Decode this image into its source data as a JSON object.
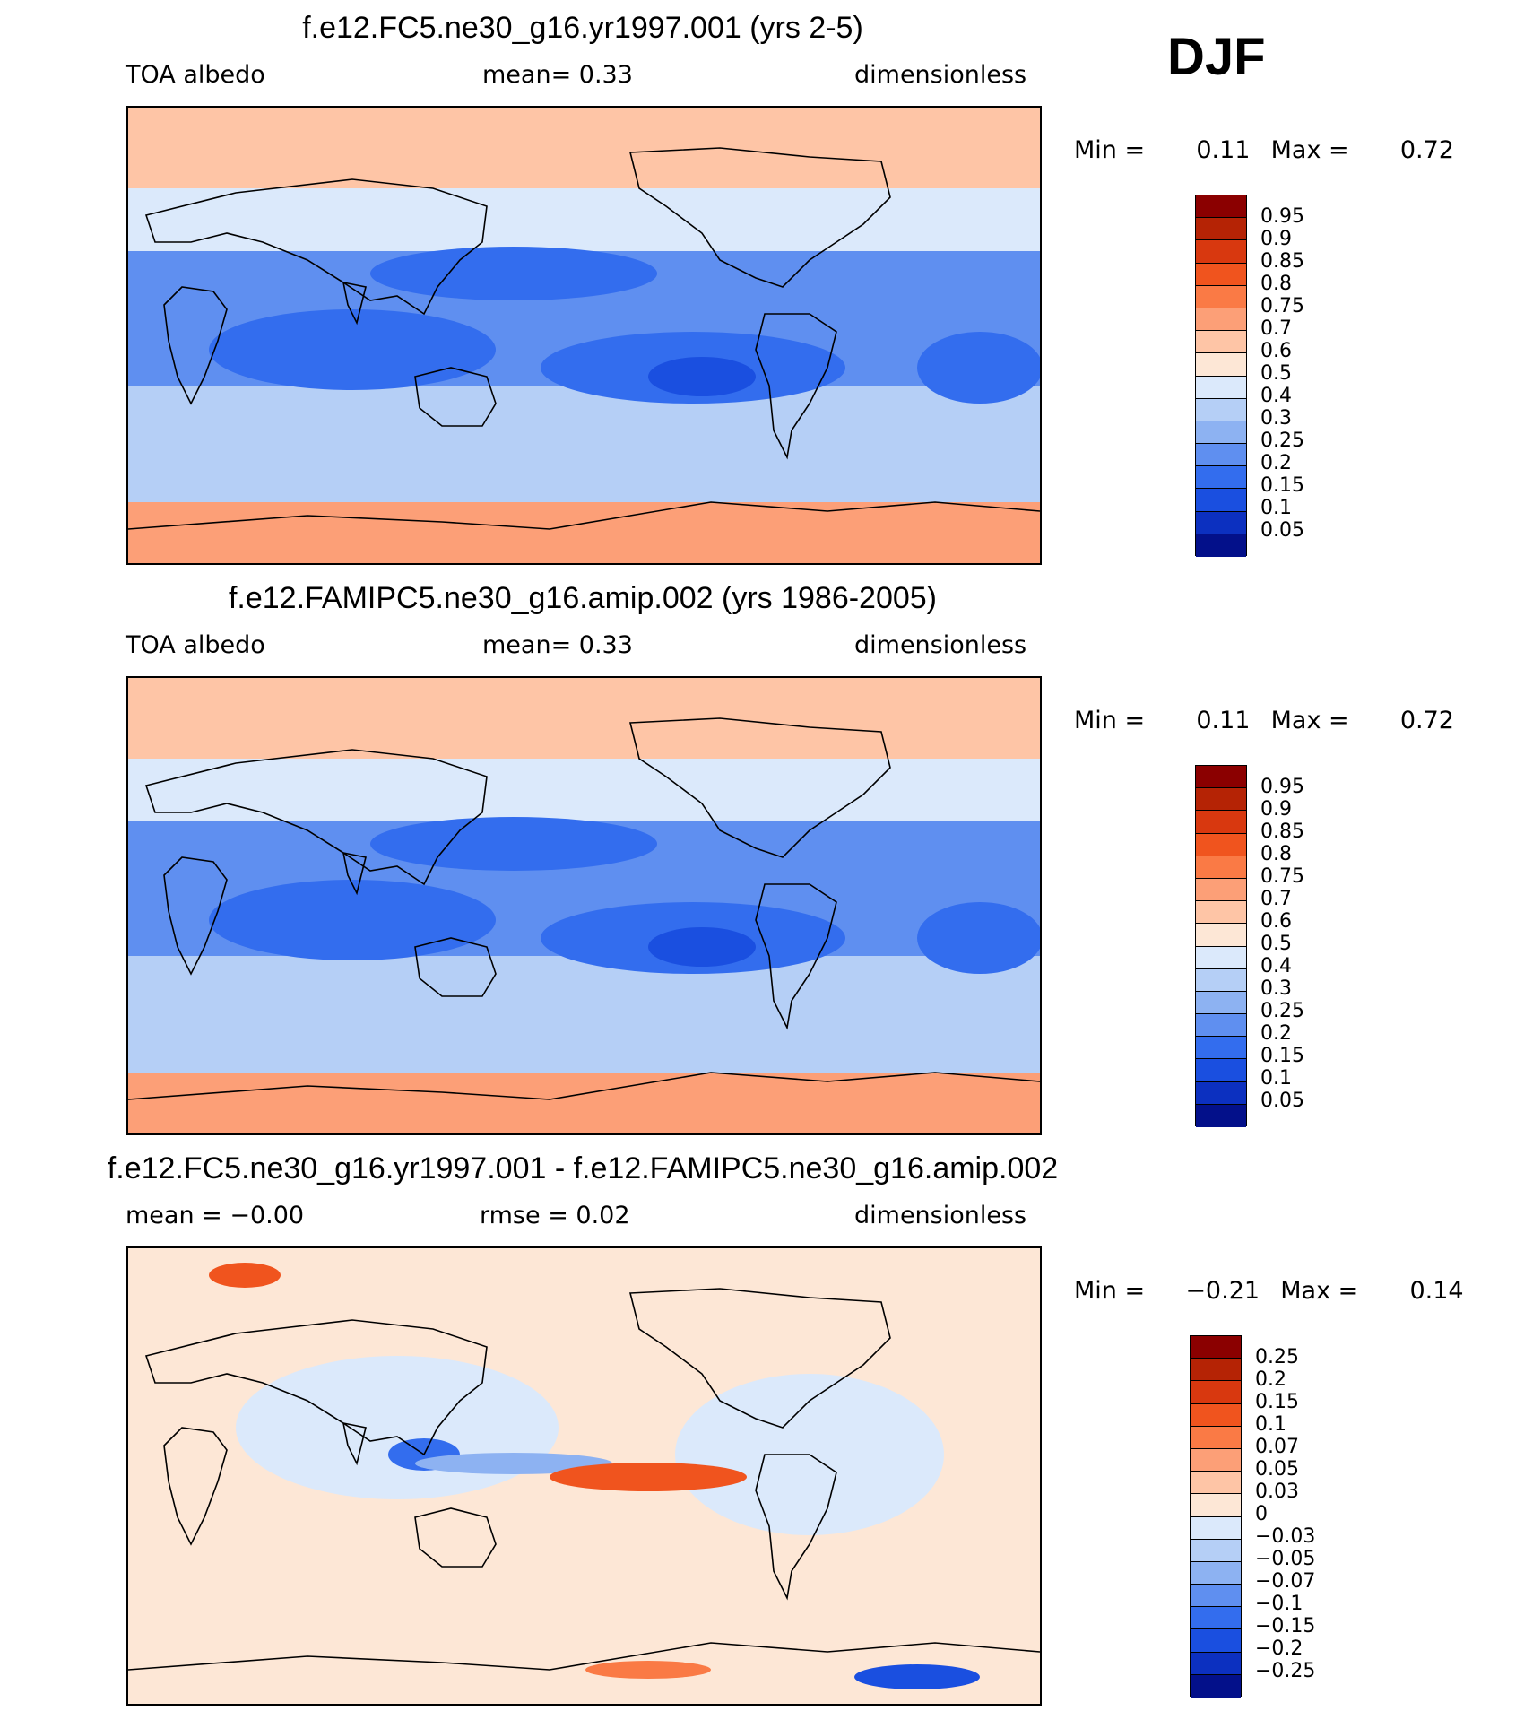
{
  "season": "DJF",
  "panels": [
    {
      "title": "f.e12.FC5.ne30_g16.yr1997.001 (yrs 2-5)",
      "left": "TOA  albedo",
      "center": "mean=     0.33",
      "right": "dimensionless",
      "min_label": "Min  =",
      "min_value": "0.11",
      "max_label": "Max  =",
      "max_value": "0.72",
      "variant": "model",
      "colorbar": {
        "labels": [
          "0.95",
          "0.9",
          "0.85",
          "0.8",
          "0.75",
          "0.7",
          "0.6",
          "0.5",
          "0.4",
          "0.3",
          "0.25",
          "0.2",
          "0.15",
          "0.1",
          "0.05"
        ],
        "colors": [
          "#8b0000",
          "#b52305",
          "#d8380f",
          "#f0541e",
          "#fa7a45",
          "#fc9f77",
          "#fec5a6",
          "#fde7d6",
          "#dbe9fb",
          "#b5cff6",
          "#8db2f2",
          "#5f8ff0",
          "#336dee",
          "#1a4fe0",
          "#0c30c0",
          "#03108a"
        ]
      }
    },
    {
      "title": "f.e12.FAMIPC5.ne30_g16.amip.002 (yrs 1986-2005)",
      "left": "TOA  albedo",
      "center": "mean=     0.33",
      "right": "dimensionless",
      "min_label": "Min  =",
      "min_value": "0.11",
      "max_label": "Max  =",
      "max_value": "0.72",
      "variant": "model",
      "colorbar": {
        "labels": [
          "0.95",
          "0.9",
          "0.85",
          "0.8",
          "0.75",
          "0.7",
          "0.6",
          "0.5",
          "0.4",
          "0.3",
          "0.25",
          "0.2",
          "0.15",
          "0.1",
          "0.05"
        ],
        "colors": [
          "#8b0000",
          "#b52305",
          "#d8380f",
          "#f0541e",
          "#fa7a45",
          "#fc9f77",
          "#fec5a6",
          "#fde7d6",
          "#dbe9fb",
          "#b5cff6",
          "#8db2f2",
          "#5f8ff0",
          "#336dee",
          "#1a4fe0",
          "#0c30c0",
          "#03108a"
        ]
      }
    },
    {
      "title": "f.e12.FC5.ne30_g16.yr1997.001 - f.e12.FAMIPC5.ne30_g16.amip.002",
      "left": "mean  =    −0.00",
      "center": "rmse  =      0.02",
      "right": "dimensionless",
      "min_label": "Min  =",
      "min_value": "−0.21",
      "max_label": "Max  =",
      "max_value": "0.14",
      "variant": "diff",
      "colorbar": {
        "labels": [
          "0.25",
          "0.2",
          "0.15",
          "0.1",
          "0.07",
          "0.05",
          "0.03",
          "0",
          "−0.03",
          "−0.05",
          "−0.07",
          "−0.1",
          "−0.15",
          "−0.2",
          "−0.25"
        ],
        "colors": [
          "#8b0000",
          "#b52305",
          "#d8380f",
          "#f0541e",
          "#fa7a45",
          "#fc9f77",
          "#fec5a6",
          "#fde7d6",
          "#dbe9fb",
          "#b5cff6",
          "#8db2f2",
          "#5f8ff0",
          "#336dee",
          "#1a4fe0",
          "#0c30c0",
          "#03108a"
        ]
      }
    }
  ]
}
